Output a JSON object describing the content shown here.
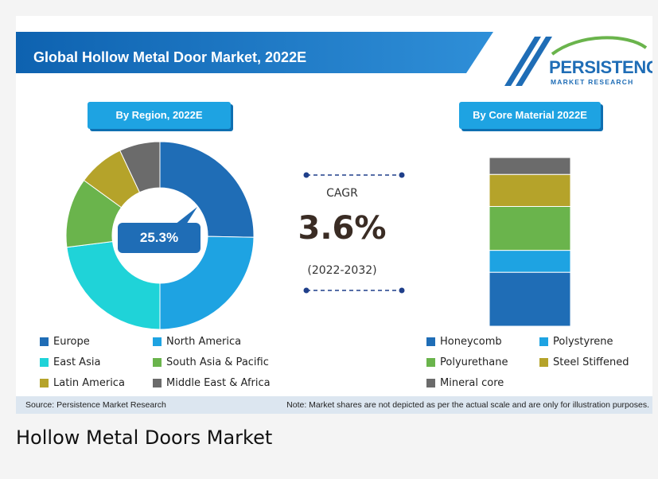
{
  "header": {
    "title": "Global Hollow Metal Door Market, 2022E"
  },
  "logo": {
    "main": "PERSISTENCE",
    "sub": "MARKET RESEARCH"
  },
  "colors": {
    "header_dark": "#0e62b0",
    "header_light": "#2f8fd8",
    "pill": "#1ea3e2",
    "europe": "#1f6db6",
    "north_america": "#1ea3e2",
    "east_asia": "#1fd3d8",
    "south_asia_pacific": "#6ab44c",
    "latin_america": "#b5a32a",
    "middle_east_africa": "#6b6b6b",
    "honeycomb": "#1f6db6",
    "polystyrene": "#1ea3e2",
    "polyurethane": "#6ab44c",
    "steel_stiffened": "#b5a32a",
    "mineral_core": "#6b6b6b"
  },
  "chart_data": [
    {
      "type": "pie",
      "title": "By Region, 2022E",
      "highlight_label": "25.3%",
      "categories": [
        "Europe",
        "North America",
        "East Asia",
        "South Asia & Pacific",
        "Latin America",
        "Middle East & Africa"
      ],
      "values": [
        25.3,
        24.7,
        23.0,
        12.0,
        8.0,
        7.0
      ],
      "legend_placement": "bottom"
    },
    {
      "type": "bar",
      "subtype": "stacked",
      "title": "By Core Material 2022E",
      "categories": [
        "Honeycomb",
        "Polystyrene",
        "Polyurethane",
        "Steel Stiffened",
        "Mineral core"
      ],
      "values": [
        32.0,
        13.0,
        26.0,
        19.0,
        10.0
      ],
      "legend_placement": "bottom"
    }
  ],
  "cagr": {
    "label": "CAGR",
    "value": "3.6%",
    "period": "(2022-2032)"
  },
  "source_bar": {
    "source": "Source: Persistence Market Research",
    "note": "Note: Market shares are not depicted as per the actual scale and are only for illustration purposes."
  },
  "caption": "Hollow Metal Doors Market"
}
